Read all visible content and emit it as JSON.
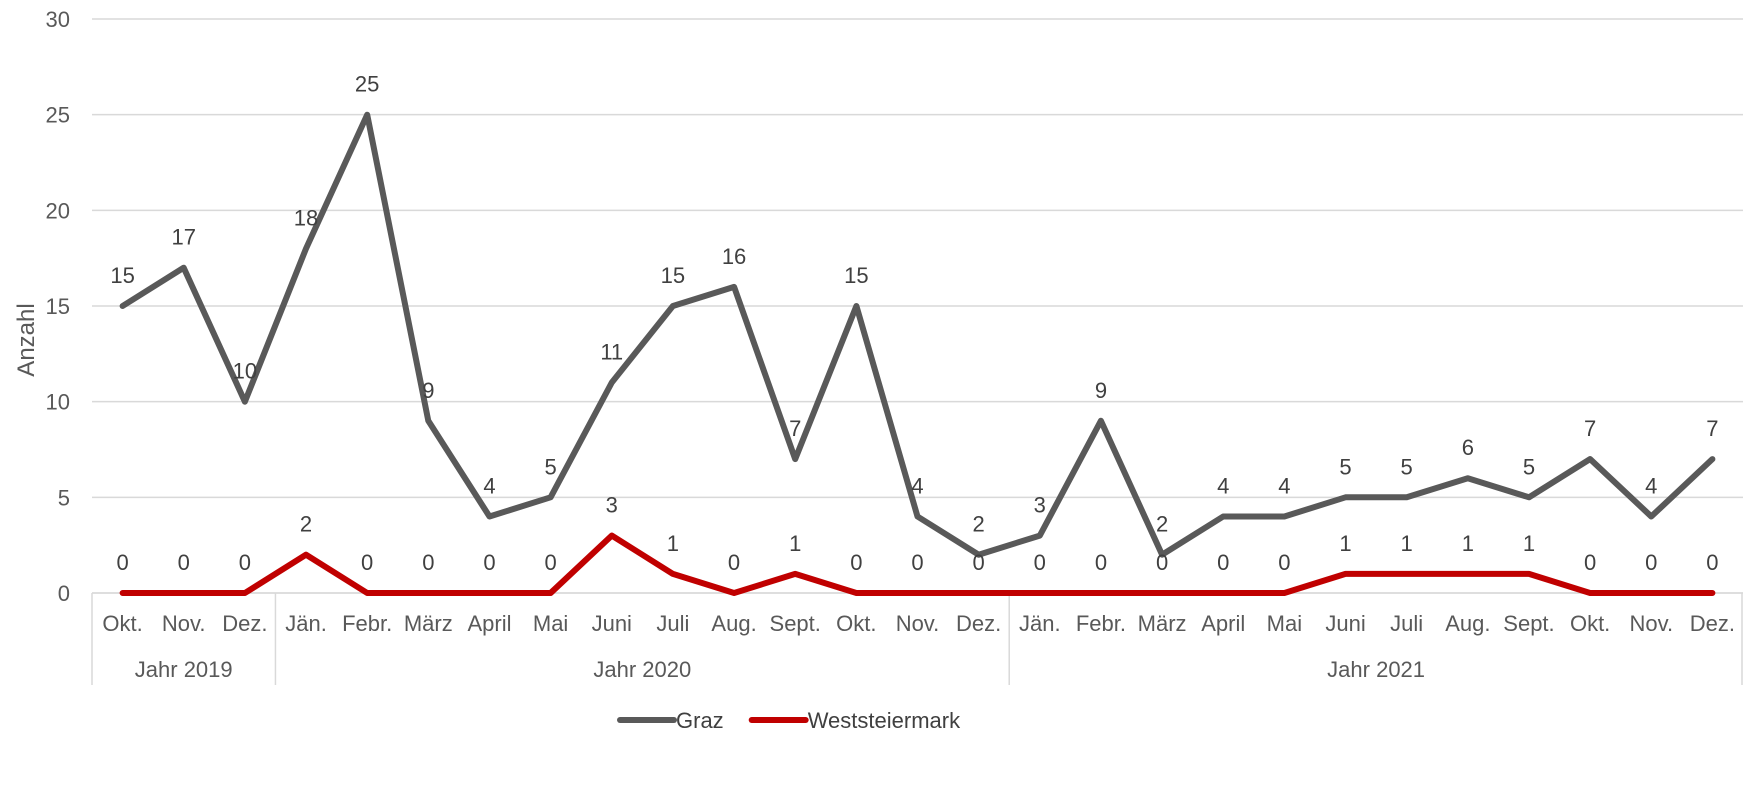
{
  "chart_data": {
    "type": "line",
    "ylabel": "Anzahl",
    "ylim": [
      0,
      30
    ],
    "yticks": [
      0,
      5,
      10,
      15,
      20,
      25,
      30
    ],
    "grid": true,
    "legend_position": "bottom",
    "categories": [
      "Okt.",
      "Nov.",
      "Dez.",
      "Jän.",
      "Febr.",
      "März",
      "April",
      "Mai",
      "Juni",
      "Juli",
      "Aug.",
      "Sept.",
      "Okt.",
      "Nov.",
      "Dez.",
      "Jän.",
      "Febr.",
      "März",
      "April",
      "Mai",
      "Juni",
      "Juli",
      "Aug.",
      "Sept.",
      "Okt.",
      "Nov.",
      "Dez."
    ],
    "groups": [
      {
        "label": "Jahr 2019",
        "count": 3
      },
      {
        "label": "Jahr 2020",
        "count": 12
      },
      {
        "label": "Jahr 2021",
        "count": 12
      }
    ],
    "series": [
      {
        "name": "Graz",
        "color": "#595959",
        "values": [
          15,
          17,
          10,
          18,
          25,
          9,
          4,
          5,
          11,
          15,
          16,
          7,
          15,
          4,
          2,
          3,
          9,
          2,
          4,
          4,
          5,
          5,
          6,
          5,
          7,
          4,
          7
        ]
      },
      {
        "name": "Weststeiermark",
        "color": "#c00000",
        "values": [
          0,
          0,
          0,
          2,
          0,
          0,
          0,
          0,
          3,
          1,
          0,
          1,
          0,
          0,
          0,
          0,
          0,
          0,
          0,
          0,
          1,
          1,
          1,
          1,
          0,
          0,
          0
        ]
      }
    ]
  }
}
